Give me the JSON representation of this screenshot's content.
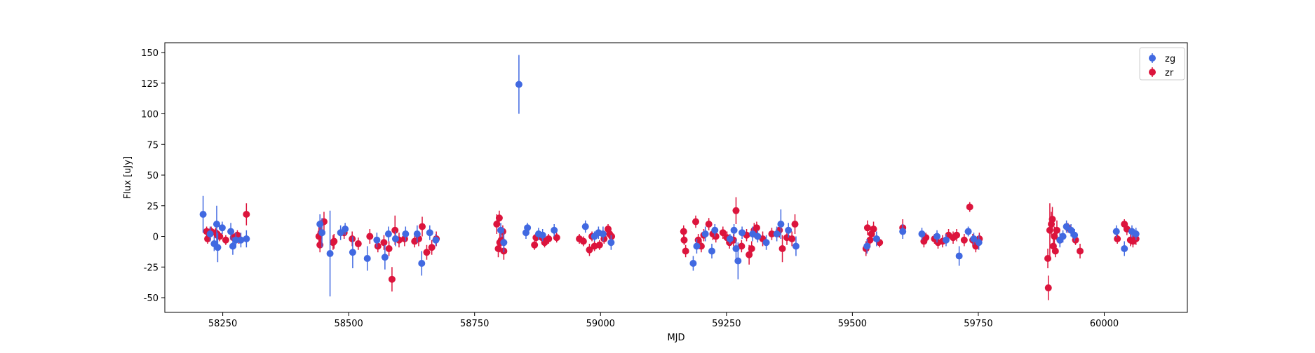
{
  "chart_data": {
    "type": "scatter",
    "xlabel": "MJD",
    "ylabel": "Flux [uJy]",
    "xlim": [
      58135,
      60165
    ],
    "ylim": [
      -62,
      158
    ],
    "xticks": [
      58250,
      58500,
      58750,
      59000,
      59250,
      59500,
      59750,
      60000
    ],
    "yticks": [
      -50,
      -25,
      0,
      25,
      50,
      75,
      100,
      125,
      150
    ],
    "grid": false,
    "legend": "top-right",
    "error_bars": true,
    "series": [
      {
        "name": "zg",
        "color": "#4169e1",
        "points": [
          [
            58211,
            18,
            15
          ],
          [
            58225,
            2,
            6
          ],
          [
            58233,
            -6,
            6
          ],
          [
            58238,
            10,
            15
          ],
          [
            58240,
            -9,
            12
          ],
          [
            58249,
            7,
            5
          ],
          [
            58266,
            4,
            7
          ],
          [
            58270,
            -8,
            7
          ],
          [
            58276,
            -3,
            6
          ],
          [
            58286,
            -3,
            6
          ],
          [
            58297,
            -2,
            7
          ],
          [
            58443,
            10,
            8
          ],
          [
            58447,
            3,
            12
          ],
          [
            58463,
            -14,
            35
          ],
          [
            58484,
            3,
            6
          ],
          [
            58493,
            6,
            5
          ],
          [
            58508,
            -13,
            13
          ],
          [
            58537,
            -18,
            10
          ],
          [
            58556,
            -3,
            6
          ],
          [
            58572,
            -17,
            10
          ],
          [
            58579,
            2,
            6
          ],
          [
            58593,
            -2,
            6
          ],
          [
            58613,
            2,
            6
          ],
          [
            58636,
            2,
            7
          ],
          [
            58645,
            -22,
            10
          ],
          [
            58661,
            3,
            6
          ],
          [
            58673,
            -3,
            5
          ],
          [
            58802,
            5,
            6
          ],
          [
            58808,
            -5,
            8
          ],
          [
            58838,
            124,
            24
          ],
          [
            58852,
            3,
            5
          ],
          [
            58855,
            7,
            4
          ],
          [
            58877,
            2,
            5
          ],
          [
            58885,
            1,
            5
          ],
          [
            58908,
            5,
            5
          ],
          [
            58970,
            8,
            5
          ],
          [
            58988,
            0,
            4
          ],
          [
            58996,
            3,
            5
          ],
          [
            59005,
            2,
            6
          ],
          [
            59021,
            -5,
            6
          ],
          [
            59184,
            -22,
            6
          ],
          [
            59191,
            -8,
            6
          ],
          [
            59208,
            2,
            6
          ],
          [
            59221,
            -12,
            6
          ],
          [
            59227,
            5,
            5
          ],
          [
            59257,
            -2,
            4
          ],
          [
            59265,
            5,
            5
          ],
          [
            59269,
            -10,
            8
          ],
          [
            59273,
            -20,
            15
          ],
          [
            59281,
            3,
            5
          ],
          [
            59302,
            2,
            6
          ],
          [
            59312,
            0,
            5
          ],
          [
            59329,
            -5,
            6
          ],
          [
            59350,
            2,
            6
          ],
          [
            59358,
            10,
            12
          ],
          [
            59373,
            5,
            6
          ],
          [
            59388,
            -8,
            8
          ],
          [
            59529,
            -8,
            6
          ],
          [
            59548,
            -2,
            6
          ],
          [
            59600,
            4,
            6
          ],
          [
            59638,
            2,
            5
          ],
          [
            59668,
            0,
            5
          ],
          [
            59686,
            -3,
            5
          ],
          [
            59712,
            -16,
            8
          ],
          [
            59730,
            4,
            4
          ],
          [
            59741,
            -2,
            5
          ],
          [
            59751,
            -5,
            6
          ],
          [
            59912,
            -3,
            6
          ],
          [
            59918,
            0,
            5
          ],
          [
            59925,
            8,
            5
          ],
          [
            59934,
            5,
            5
          ],
          [
            59941,
            1,
            5
          ],
          [
            60024,
            4,
            5
          ],
          [
            60040,
            -10,
            6
          ],
          [
            60055,
            4,
            5
          ],
          [
            60063,
            2,
            5
          ]
        ]
      },
      {
        "name": "zr",
        "color": "#dc143c",
        "points": [
          [
            58218,
            4,
            4
          ],
          [
            58220,
            -2,
            4
          ],
          [
            58227,
            4,
            4
          ],
          [
            58236,
            3,
            4
          ],
          [
            58239,
            1,
            4
          ],
          [
            58244,
            0,
            4
          ],
          [
            58256,
            -3,
            4
          ],
          [
            58271,
            -1,
            4
          ],
          [
            58279,
            1,
            4
          ],
          [
            58282,
            -2,
            4
          ],
          [
            58297,
            18,
            9
          ],
          [
            58441,
            0,
            8
          ],
          [
            58443,
            -7,
            6
          ],
          [
            58445,
            3,
            8
          ],
          [
            58451,
            12,
            8
          ],
          [
            58469,
            -5,
            6
          ],
          [
            58471,
            -4,
            6
          ],
          [
            58491,
            3,
            5
          ],
          [
            58507,
            -2,
            6
          ],
          [
            58519,
            -6,
            5
          ],
          [
            58542,
            0,
            6
          ],
          [
            58558,
            -8,
            5
          ],
          [
            58570,
            -5,
            6
          ],
          [
            58580,
            -10,
            6
          ],
          [
            58586,
            -35,
            10
          ],
          [
            58592,
            5,
            12
          ],
          [
            58600,
            -3,
            6
          ],
          [
            58611,
            -2,
            6
          ],
          [
            58631,
            -4,
            5
          ],
          [
            58639,
            -2,
            6
          ],
          [
            58646,
            8,
            8
          ],
          [
            58655,
            -13,
            6
          ],
          [
            58665,
            -9,
            6
          ],
          [
            58674,
            -2,
            6
          ],
          [
            58794,
            10,
            8
          ],
          [
            58797,
            -10,
            7
          ],
          [
            58799,
            15,
            6
          ],
          [
            58800,
            -5,
            8
          ],
          [
            58803,
            -3,
            5
          ],
          [
            58806,
            4,
            5
          ],
          [
            58808,
            -12,
            7
          ],
          [
            58869,
            -7,
            4
          ],
          [
            58872,
            -1,
            4
          ],
          [
            58884,
            -1,
            4
          ],
          [
            58889,
            -5,
            4
          ],
          [
            58897,
            -2,
            4
          ],
          [
            58913,
            -1,
            4
          ],
          [
            58958,
            -2,
            4
          ],
          [
            58966,
            -4,
            4
          ],
          [
            58978,
            -11,
            5
          ],
          [
            58983,
            0,
            4
          ],
          [
            58988,
            -8,
            4
          ],
          [
            58998,
            -7,
            4
          ],
          [
            59007,
            -2,
            4
          ],
          [
            59015,
            6,
            4
          ],
          [
            59018,
            2,
            4
          ],
          [
            59022,
            0,
            4
          ],
          [
            59165,
            4,
            5
          ],
          [
            59166,
            -3,
            4
          ],
          [
            59169,
            -12,
            5
          ],
          [
            59189,
            12,
            5
          ],
          [
            59194,
            -3,
            5
          ],
          [
            59200,
            -8,
            5
          ],
          [
            59205,
            1,
            5
          ],
          [
            59215,
            10,
            5
          ],
          [
            59223,
            2,
            5
          ],
          [
            59229,
            0,
            5
          ],
          [
            59243,
            3,
            5
          ],
          [
            59251,
            -1,
            5
          ],
          [
            59256,
            -5,
            5
          ],
          [
            59264,
            -3,
            5
          ],
          [
            59269,
            21,
            11
          ],
          [
            59280,
            -8,
            5
          ],
          [
            59290,
            1,
            5
          ],
          [
            59295,
            -15,
            8
          ],
          [
            59300,
            -10,
            6
          ],
          [
            59305,
            5,
            6
          ],
          [
            59310,
            7,
            5
          ],
          [
            59322,
            -2,
            6
          ],
          [
            59340,
            2,
            5
          ],
          [
            59355,
            5,
            6
          ],
          [
            59361,
            -10,
            11
          ],
          [
            59370,
            -1,
            6
          ],
          [
            59380,
            -2,
            6
          ],
          [
            59386,
            10,
            8
          ],
          [
            59527,
            -10,
            6
          ],
          [
            59530,
            7,
            6
          ],
          [
            59535,
            -3,
            6
          ],
          [
            59538,
            2,
            6
          ],
          [
            59542,
            6,
            6
          ],
          [
            59554,
            -5,
            4
          ],
          [
            59600,
            7,
            7
          ],
          [
            59642,
            -4,
            5
          ],
          [
            59646,
            -1,
            4
          ],
          [
            59663,
            -2,
            4
          ],
          [
            59670,
            -5,
            5
          ],
          [
            59679,
            -4,
            5
          ],
          [
            59691,
            1,
            5
          ],
          [
            59700,
            -1,
            5
          ],
          [
            59707,
            1,
            5
          ],
          [
            59722,
            -3,
            5
          ],
          [
            59733,
            24,
            4
          ],
          [
            59739,
            -3,
            5
          ],
          [
            59745,
            -8,
            5
          ],
          [
            59752,
            -2,
            5
          ],
          [
            59888,
            -18,
            8
          ],
          [
            59889,
            -42,
            10
          ],
          [
            59892,
            5,
            22
          ],
          [
            59895,
            10,
            10
          ],
          [
            59897,
            14,
            10
          ],
          [
            59899,
            -8,
            6
          ],
          [
            59901,
            0,
            8
          ],
          [
            59903,
            -12,
            5
          ],
          [
            59906,
            5,
            8
          ],
          [
            59912,
            -3,
            5
          ],
          [
            59928,
            7,
            4
          ],
          [
            59943,
            -3,
            4
          ],
          [
            59952,
            -12,
            6
          ],
          [
            60026,
            -2,
            4
          ],
          [
            60040,
            10,
            4
          ],
          [
            60045,
            6,
            5
          ],
          [
            60052,
            -3,
            5
          ],
          [
            60057,
            -4,
            5
          ],
          [
            60063,
            -2,
            5
          ]
        ]
      }
    ]
  }
}
